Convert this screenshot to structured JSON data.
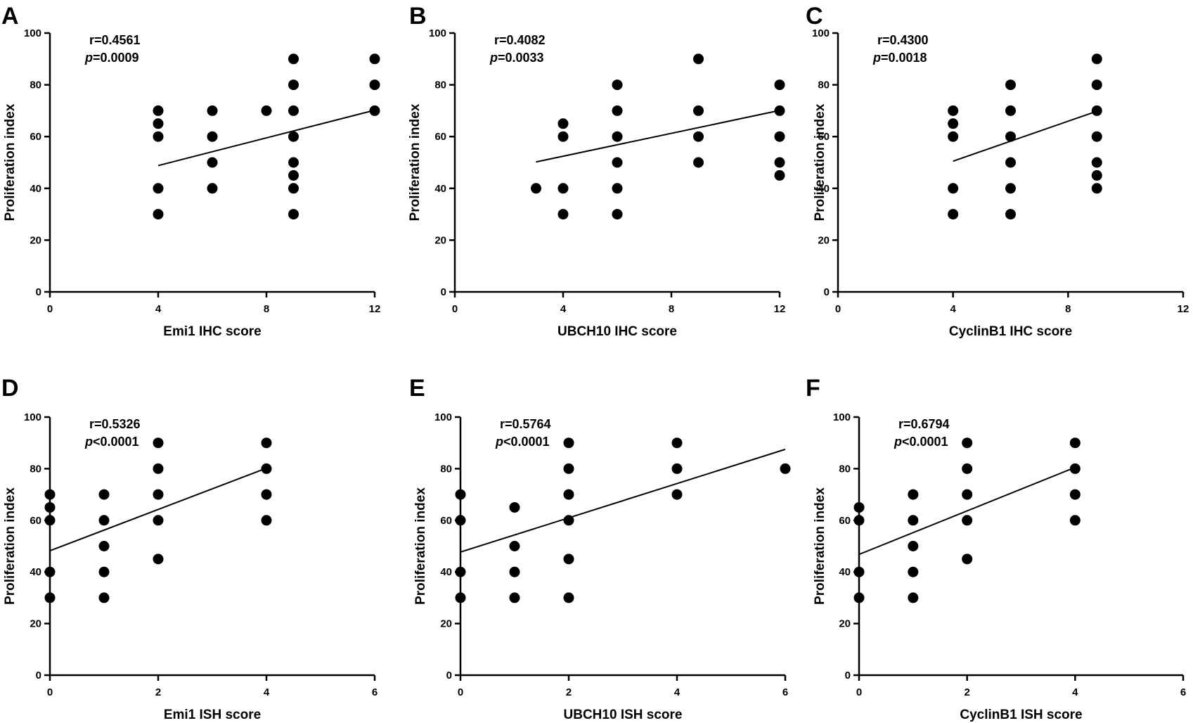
{
  "chart_data": [
    {
      "panel": "A",
      "type": "scatter",
      "xlabel": "Emi1 IHC score",
      "ylabel": "Proliferation index",
      "xlim": [
        0,
        12
      ],
      "ylim": [
        0,
        100
      ],
      "xticks": [
        0,
        4,
        8,
        12
      ],
      "yticks": [
        0,
        20,
        40,
        60,
        80,
        100
      ],
      "stat_r": "r=0.4561",
      "stat_p_symbol": "p",
      "stat_p_value": "=0.0009",
      "fit_line": {
        "x": [
          4,
          12
        ],
        "y": [
          48.8,
          70.2
        ]
      },
      "points": [
        [
          4,
          30
        ],
        [
          4,
          40
        ],
        [
          4,
          60
        ],
        [
          4,
          65
        ],
        [
          4,
          70
        ],
        [
          6,
          40
        ],
        [
          6,
          50
        ],
        [
          6,
          60
        ],
        [
          6,
          70
        ],
        [
          8,
          70
        ],
        [
          9,
          30
        ],
        [
          9,
          40
        ],
        [
          9,
          45
        ],
        [
          9,
          50
        ],
        [
          9,
          60
        ],
        [
          9,
          70
        ],
        [
          9,
          80
        ],
        [
          9,
          90
        ],
        [
          12,
          70
        ],
        [
          12,
          80
        ],
        [
          12,
          90
        ]
      ]
    },
    {
      "panel": "B",
      "type": "scatter",
      "xlabel": "UBCH10 IHC score",
      "ylabel": "Proliferation index",
      "xlim": [
        0,
        12
      ],
      "ylim": [
        0,
        100
      ],
      "xticks": [
        0,
        4,
        8,
        12
      ],
      "yticks": [
        0,
        20,
        40,
        60,
        80,
        100
      ],
      "stat_r": "r=0.4082",
      "stat_p_symbol": "p",
      "stat_p_value": "=0.0033",
      "fit_line": {
        "x": [
          3,
          12
        ],
        "y": [
          50.2,
          70.1
        ]
      },
      "points": [
        [
          3,
          40
        ],
        [
          4,
          30
        ],
        [
          4,
          40
        ],
        [
          4,
          60
        ],
        [
          4,
          65
        ],
        [
          6,
          30
        ],
        [
          6,
          40
        ],
        [
          6,
          50
        ],
        [
          6,
          60
        ],
        [
          6,
          70
        ],
        [
          6,
          80
        ],
        [
          9,
          50
        ],
        [
          9,
          60
        ],
        [
          9,
          70
        ],
        [
          9,
          90
        ],
        [
          12,
          45
        ],
        [
          12,
          50
        ],
        [
          12,
          60
        ],
        [
          12,
          70
        ],
        [
          12,
          80
        ]
      ]
    },
    {
      "panel": "C",
      "type": "scatter",
      "xlabel": "CyclinB1 IHC score",
      "ylabel": "Proliferation index",
      "xlim": [
        0,
        12
      ],
      "ylim": [
        0,
        100
      ],
      "xticks": [
        0,
        4,
        8,
        12
      ],
      "yticks": [
        0,
        20,
        40,
        60,
        80,
        100
      ],
      "stat_r": "r=0.4300",
      "stat_p_symbol": "p",
      "stat_p_value": "=0.0018",
      "fit_line": {
        "x": [
          4,
          9
        ],
        "y": [
          50.5,
          69.8
        ]
      },
      "points": [
        [
          4,
          30
        ],
        [
          4,
          40
        ],
        [
          4,
          60
        ],
        [
          4,
          65
        ],
        [
          4,
          70
        ],
        [
          6,
          30
        ],
        [
          6,
          40
        ],
        [
          6,
          50
        ],
        [
          6,
          60
        ],
        [
          6,
          70
        ],
        [
          6,
          80
        ],
        [
          9,
          40
        ],
        [
          9,
          45
        ],
        [
          9,
          50
        ],
        [
          9,
          60
        ],
        [
          9,
          70
        ],
        [
          9,
          80
        ],
        [
          9,
          90
        ]
      ]
    },
    {
      "panel": "D",
      "type": "scatter",
      "xlabel": "Emi1 ISH score",
      "ylabel": "Proliferation index",
      "xlim": [
        0,
        6
      ],
      "ylim": [
        0,
        100
      ],
      "xticks": [
        0,
        2,
        4,
        6
      ],
      "yticks": [
        0,
        20,
        40,
        60,
        80,
        100
      ],
      "stat_r": "r=0.5326",
      "stat_p_symbol": "p",
      "stat_p_value": "<0.0001",
      "fit_line": {
        "x": [
          0,
          4
        ],
        "y": [
          48.2,
          80.2
        ]
      },
      "points": [
        [
          0,
          30
        ],
        [
          0,
          40
        ],
        [
          0,
          60
        ],
        [
          0,
          65
        ],
        [
          0,
          70
        ],
        [
          1,
          30
        ],
        [
          1,
          40
        ],
        [
          1,
          50
        ],
        [
          1,
          60
        ],
        [
          1,
          70
        ],
        [
          2,
          45
        ],
        [
          2,
          60
        ],
        [
          2,
          70
        ],
        [
          2,
          80
        ],
        [
          2,
          90
        ],
        [
          4,
          60
        ],
        [
          4,
          70
        ],
        [
          4,
          80
        ],
        [
          4,
          90
        ]
      ]
    },
    {
      "panel": "E",
      "type": "scatter",
      "xlabel": "UBCH10 ISH score",
      "ylabel": "Proliferation index",
      "xlim": [
        0,
        6
      ],
      "ylim": [
        0,
        100
      ],
      "xticks": [
        0,
        2,
        4,
        6
      ],
      "yticks": [
        0,
        20,
        40,
        60,
        80,
        100
      ],
      "stat_r": "r=0.5764",
      "stat_p_symbol": "p",
      "stat_p_value": "<0.0001",
      "fit_line": {
        "x": [
          0,
          6
        ],
        "y": [
          47.7,
          87.5
        ]
      },
      "points": [
        [
          0,
          30
        ],
        [
          0,
          40
        ],
        [
          0,
          60
        ],
        [
          0,
          70
        ],
        [
          1,
          30
        ],
        [
          1,
          40
        ],
        [
          1,
          50
        ],
        [
          1,
          65
        ],
        [
          2,
          30
        ],
        [
          2,
          45
        ],
        [
          2,
          60
        ],
        [
          2,
          70
        ],
        [
          2,
          80
        ],
        [
          2,
          90
        ],
        [
          4,
          70
        ],
        [
          4,
          80
        ],
        [
          4,
          90
        ],
        [
          6,
          80
        ]
      ]
    },
    {
      "panel": "F",
      "type": "scatter",
      "xlabel": "CyclinB1 ISH score",
      "ylabel": "Proliferation index",
      "xlim": [
        0,
        6
      ],
      "ylim": [
        0,
        100
      ],
      "xticks": [
        0,
        2,
        4,
        6
      ],
      "yticks": [
        0,
        20,
        40,
        60,
        80,
        100
      ],
      "stat_r": "r=0.6794",
      "stat_p_symbol": "p",
      "stat_p_value": "<0.0001",
      "fit_line": {
        "x": [
          0,
          4
        ],
        "y": [
          46.8,
          80.5
        ]
      },
      "points": [
        [
          0,
          30
        ],
        [
          0,
          40
        ],
        [
          0,
          60
        ],
        [
          0,
          65
        ],
        [
          1,
          30
        ],
        [
          1,
          40
        ],
        [
          1,
          50
        ],
        [
          1,
          60
        ],
        [
          1,
          70
        ],
        [
          2,
          45
        ],
        [
          2,
          60
        ],
        [
          2,
          70
        ],
        [
          2,
          80
        ],
        [
          2,
          90
        ],
        [
          4,
          60
        ],
        [
          4,
          70
        ],
        [
          4,
          80
        ],
        [
          4,
          90
        ]
      ]
    }
  ]
}
